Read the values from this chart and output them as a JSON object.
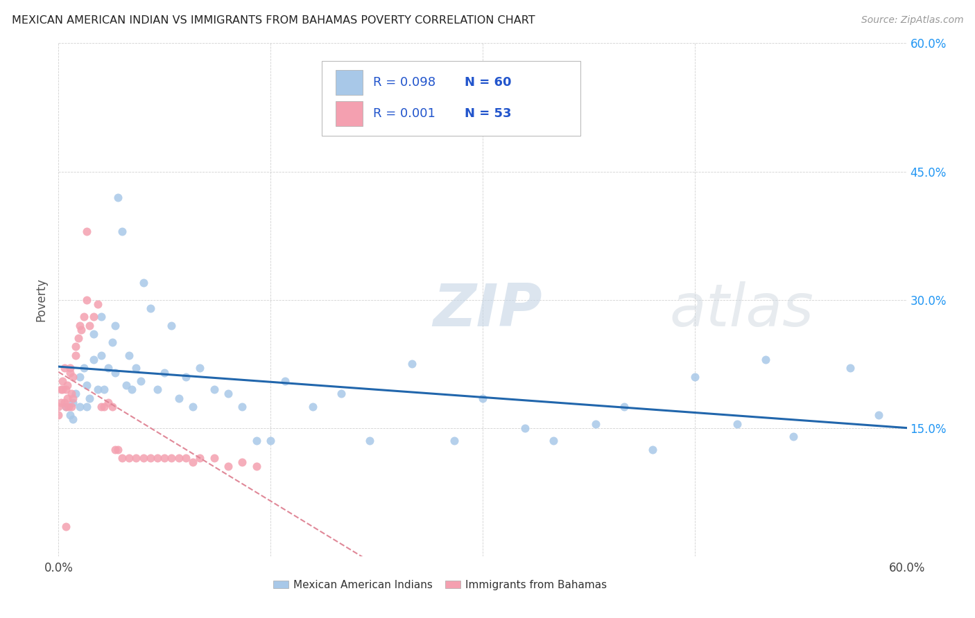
{
  "title": "MEXICAN AMERICAN INDIAN VS IMMIGRANTS FROM BAHAMAS POVERTY CORRELATION CHART",
  "source": "Source: ZipAtlas.com",
  "ylabel": "Poverty",
  "xlim": [
    0.0,
    0.6
  ],
  "ylim": [
    0.0,
    0.6
  ],
  "blue_R": 0.098,
  "blue_N": 60,
  "pink_R": 0.001,
  "pink_N": 53,
  "blue_color": "#a8c8e8",
  "pink_color": "#f4a0b0",
  "blue_line_color": "#2166ac",
  "pink_line_color": "#e08898",
  "watermark_zip": "ZIP",
  "watermark_atlas": "atlas",
  "legend_label_blue": "Mexican American Indians",
  "legend_label_pink": "Immigrants from Bahamas",
  "blue_x": [
    0.005,
    0.008,
    0.01,
    0.01,
    0.012,
    0.015,
    0.015,
    0.018,
    0.02,
    0.02,
    0.022,
    0.025,
    0.025,
    0.028,
    0.03,
    0.03,
    0.032,
    0.035,
    0.038,
    0.04,
    0.04,
    0.042,
    0.045,
    0.048,
    0.05,
    0.052,
    0.055,
    0.058,
    0.06,
    0.065,
    0.07,
    0.075,
    0.08,
    0.085,
    0.09,
    0.095,
    0.1,
    0.11,
    0.12,
    0.13,
    0.14,
    0.15,
    0.16,
    0.18,
    0.2,
    0.22,
    0.25,
    0.28,
    0.3,
    0.33,
    0.35,
    0.38,
    0.4,
    0.42,
    0.45,
    0.48,
    0.5,
    0.52,
    0.56,
    0.58
  ],
  "blue_y": [
    0.175,
    0.165,
    0.18,
    0.16,
    0.19,
    0.21,
    0.175,
    0.22,
    0.2,
    0.175,
    0.185,
    0.26,
    0.23,
    0.195,
    0.28,
    0.235,
    0.195,
    0.22,
    0.25,
    0.27,
    0.215,
    0.42,
    0.38,
    0.2,
    0.235,
    0.195,
    0.22,
    0.205,
    0.32,
    0.29,
    0.195,
    0.215,
    0.27,
    0.185,
    0.21,
    0.175,
    0.22,
    0.195,
    0.19,
    0.175,
    0.135,
    0.135,
    0.205,
    0.175,
    0.19,
    0.135,
    0.225,
    0.135,
    0.185,
    0.15,
    0.135,
    0.155,
    0.175,
    0.125,
    0.21,
    0.155,
    0.23,
    0.14,
    0.22,
    0.165
  ],
  "pink_x": [
    0.0,
    0.0,
    0.002,
    0.002,
    0.003,
    0.003,
    0.004,
    0.004,
    0.005,
    0.005,
    0.006,
    0.006,
    0.007,
    0.008,
    0.008,
    0.009,
    0.009,
    0.01,
    0.01,
    0.012,
    0.012,
    0.014,
    0.015,
    0.016,
    0.018,
    0.02,
    0.022,
    0.025,
    0.028,
    0.03,
    0.032,
    0.035,
    0.038,
    0.04,
    0.042,
    0.045,
    0.05,
    0.055,
    0.06,
    0.065,
    0.07,
    0.075,
    0.08,
    0.085,
    0.09,
    0.095,
    0.1,
    0.11,
    0.12,
    0.13,
    0.14,
    0.02,
    0.005
  ],
  "pink_y": [
    0.175,
    0.165,
    0.195,
    0.18,
    0.195,
    0.205,
    0.22,
    0.18,
    0.195,
    0.175,
    0.2,
    0.185,
    0.175,
    0.22,
    0.215,
    0.175,
    0.19,
    0.21,
    0.185,
    0.245,
    0.235,
    0.255,
    0.27,
    0.265,
    0.28,
    0.3,
    0.27,
    0.28,
    0.295,
    0.175,
    0.175,
    0.18,
    0.175,
    0.125,
    0.125,
    0.115,
    0.115,
    0.115,
    0.115,
    0.115,
    0.115,
    0.115,
    0.115,
    0.115,
    0.115,
    0.11,
    0.115,
    0.115,
    0.105,
    0.11,
    0.105,
    0.38,
    0.035
  ]
}
